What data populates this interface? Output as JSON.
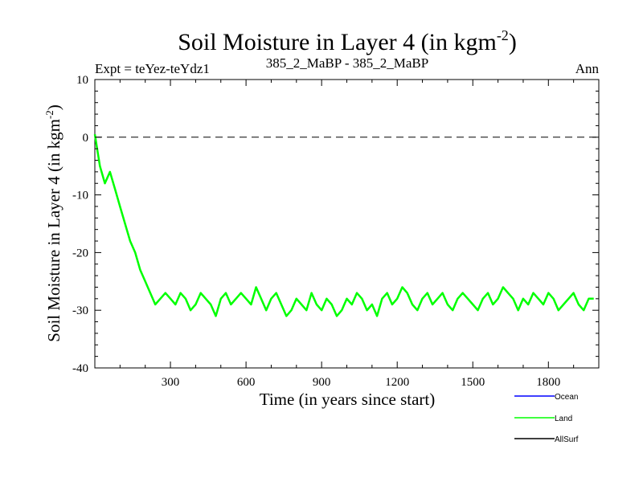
{
  "chart_data": {
    "type": "line",
    "title": "Soil Moisture in Layer 4 (in kgm",
    "title_sup": "-2",
    "title_close": ")",
    "subtitle_left": "Expt = teYez-teYdz1",
    "subtitle_center": "385_2_MaBP - 385_2_MaBP",
    "subtitle_right": "Ann",
    "xlabel": "Time (in years since start)",
    "ylabel": "Soil Moisture in Layer 4 (in kgm",
    "ylabel_sup": "-2",
    "ylabel_close": ")",
    "xlim": [
      0,
      2000
    ],
    "ylim": [
      -40,
      10
    ],
    "xticks": [
      300,
      600,
      900,
      1200,
      1500,
      1800
    ],
    "yticks": [
      10,
      0,
      -10,
      -20,
      -30,
      -40
    ],
    "xtick_labels": [
      "300",
      "600",
      "900",
      "1200",
      "1500",
      "1800"
    ],
    "ytick_labels": [
      "10",
      "0",
      "-10",
      "-20",
      "-30",
      "-40"
    ],
    "reference_line": 0,
    "series": [
      {
        "name": "Ocean",
        "color": "#0000ff",
        "values": []
      },
      {
        "name": "Land",
        "color": "#00ff00",
        "x_start": 0,
        "x_step": 20,
        "values": [
          0.5,
          -5,
          -8,
          -6,
          -9,
          -12,
          -15,
          -18,
          -20,
          -23,
          -25,
          -27,
          -29,
          -28,
          -27,
          -28,
          -29,
          -27,
          -28,
          -30,
          -29,
          -27,
          -28,
          -29,
          -31,
          -28,
          -27,
          -29,
          -28,
          -27,
          -28,
          -29,
          -26,
          -28,
          -30,
          -28,
          -27,
          -29,
          -31,
          -30,
          -28,
          -29,
          -30,
          -27,
          -29,
          -30,
          -28,
          -29,
          -31,
          -30,
          -28,
          -29,
          -27,
          -28,
          -30,
          -29,
          -31,
          -28,
          -27,
          -29,
          -28,
          -26,
          -27,
          -29,
          -30,
          -28,
          -27,
          -29,
          -28,
          -27,
          -29,
          -30,
          -28,
          -27,
          -28,
          -29,
          -30,
          -28,
          -27,
          -29,
          -28,
          -26,
          -27,
          -28,
          -30,
          -28,
          -29,
          -27,
          -28,
          -29,
          -27,
          -28,
          -30,
          -29,
          -28,
          -27,
          -29,
          -30,
          -28,
          -28
        ]
      },
      {
        "name": "AllSurf",
        "color": "#000000",
        "values": []
      }
    ],
    "legend": [
      {
        "label": "Ocean",
        "color": "#0000ff"
      },
      {
        "label": "Land",
        "color": "#00ff00"
      },
      {
        "label": "AllSurf",
        "color": "#000000"
      }
    ],
    "legend_position": "bottom-right"
  }
}
